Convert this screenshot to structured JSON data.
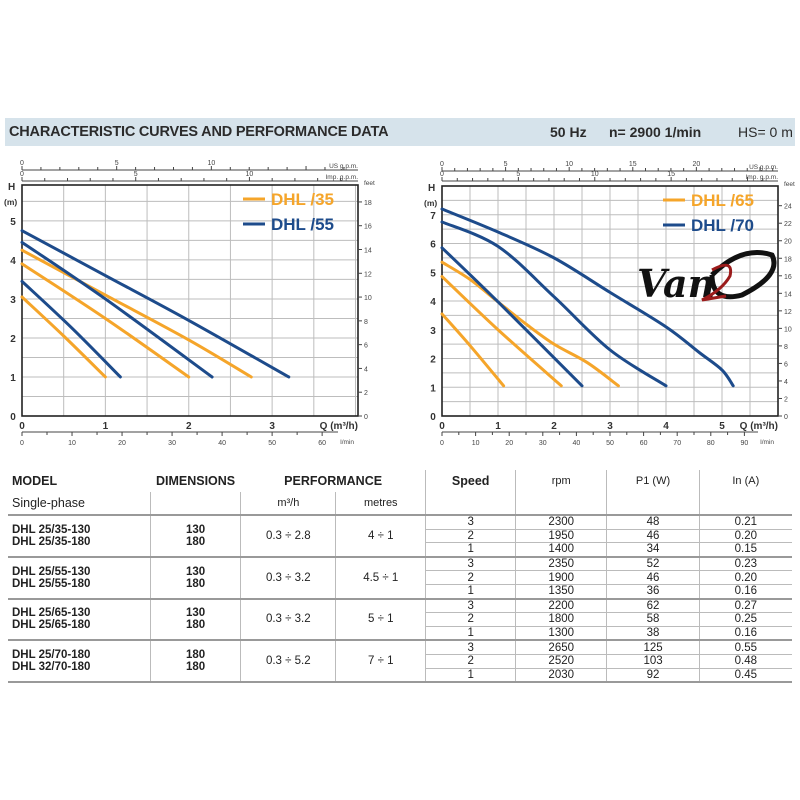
{
  "header": {
    "title": "CHARACTERISTIC CURVES AND PERFORMANCE DATA",
    "frequency": "50 Hz",
    "speed": "n= 2900  1/min",
    "hs": "HS= 0 m"
  },
  "colors": {
    "orange": "#f5a52a",
    "blue": "#1d4b8b",
    "header_bg": "#d6e3eb"
  },
  "logo_text": "Van2O",
  "chart_data": [
    {
      "type": "line",
      "title": "",
      "xlabel": "Q (m³/h)",
      "ylabel_top": "H",
      "ylabel_unit": "(m)",
      "xlim": [
        0,
        4.03
      ],
      "ylim": [
        0,
        5.92
      ],
      "x_ticks": [
        0,
        1,
        2,
        3
      ],
      "y_ticks": [
        0,
        1,
        2,
        3,
        4,
        5
      ],
      "grid": {
        "x_step": 0.5,
        "y_step": 0.5
      },
      "secondary_axes": {
        "us_gpm": {
          "label": "US g.p.m.",
          "ticks": [
            0,
            5,
            10
          ],
          "minor_step": 1
        },
        "imp_gpm": {
          "label": "Imp. g.p.m.",
          "ticks": [
            0,
            5,
            10
          ],
          "minor_step": 1
        },
        "feet": {
          "label": "feet",
          "ticks": [
            0,
            2,
            4,
            6,
            8,
            10,
            12,
            14,
            16,
            18
          ]
        },
        "l_min": {
          "label": "l/min",
          "ticks": [
            0,
            10,
            20,
            30,
            40,
            50,
            60
          ]
        }
      },
      "legend": [
        {
          "label": "DHL /35",
          "color": "#f5a52a"
        },
        {
          "label": "DHL /55",
          "color": "#1d4b8b"
        }
      ],
      "legend_placement": "top-right",
      "series": [
        {
          "name": "DHL /35 speed 1",
          "color": "#f5a52a",
          "points": [
            [
              0,
              3.05
            ],
            [
              0.5,
              2.05
            ],
            [
              1.0,
              1.0
            ]
          ]
        },
        {
          "name": "DHL /35 speed 2",
          "color": "#f5a52a",
          "points": [
            [
              0,
              3.9
            ],
            [
              1.0,
              2.5
            ],
            [
              2.0,
              1.0
            ]
          ]
        },
        {
          "name": "DHL /35 speed 3",
          "color": "#f5a52a",
          "points": [
            [
              0,
              4.25
            ],
            [
              1.0,
              3.1
            ],
            [
              2.0,
              1.95
            ],
            [
              2.75,
              1.0
            ]
          ]
        },
        {
          "name": "DHL /55 speed 1",
          "color": "#1d4b8b",
          "points": [
            [
              0,
              3.45
            ],
            [
              0.6,
              2.25
            ],
            [
              1.18,
              1.0
            ]
          ]
        },
        {
          "name": "DHL /55 speed 2",
          "color": "#1d4b8b",
          "points": [
            [
              0,
              4.45
            ],
            [
              1.0,
              3.0
            ],
            [
              2.28,
              1.0
            ]
          ]
        },
        {
          "name": "DHL /55 speed 3",
          "color": "#1d4b8b",
          "points": [
            [
              0,
              4.75
            ],
            [
              1.0,
              3.6
            ],
            [
              2.0,
              2.45
            ],
            [
              3.2,
              1.0
            ]
          ]
        }
      ]
    },
    {
      "type": "line",
      "title": "",
      "xlabel": "Q (m³/h)",
      "ylabel_top": "H",
      "ylabel_unit": "(m)",
      "xlim": [
        0,
        6.0
      ],
      "ylim": [
        0,
        8.0
      ],
      "x_ticks": [
        0,
        1,
        2,
        3,
        4,
        5
      ],
      "y_ticks": [
        0,
        1,
        2,
        3,
        4,
        5,
        6,
        7
      ],
      "grid": {
        "x_step": 0.5,
        "y_step": 0.5
      },
      "secondary_axes": {
        "us_gpm": {
          "label": "US g.p.m.",
          "ticks": [
            0,
            5,
            10,
            15,
            20
          ],
          "minor_step": 1
        },
        "imp_gpm": {
          "label": "Imp. g.p.m.",
          "ticks": [
            0,
            5,
            10,
            15
          ],
          "minor_step": 1
        },
        "feet": {
          "label": "feet",
          "ticks": [
            0,
            2,
            4,
            6,
            8,
            10,
            12,
            14,
            16,
            18,
            20,
            22,
            24
          ]
        },
        "l_min": {
          "label": "l/min",
          "ticks": [
            0,
            10,
            20,
            30,
            40,
            50,
            60,
            70,
            80,
            90
          ]
        }
      },
      "legend": [
        {
          "label": "DHL /65",
          "color": "#f5a52a"
        },
        {
          "label": "DHL /70",
          "color": "#1d4b8b"
        }
      ],
      "legend_placement": "top-right",
      "series": [
        {
          "name": "DHL /65 speed 1",
          "color": "#f5a52a",
          "points": [
            [
              0,
              3.55
            ],
            [
              0.5,
              2.45
            ],
            [
              1.1,
              1.05
            ]
          ]
        },
        {
          "name": "DHL /65 speed 2",
          "color": "#f5a52a",
          "points": [
            [
              0,
              4.85
            ],
            [
              1.0,
              3.0
            ],
            [
              2.13,
              1.05
            ]
          ]
        },
        {
          "name": "DHL /65 speed 3",
          "color": "#f5a52a",
          "points": [
            [
              0,
              5.35
            ],
            [
              0.5,
              4.75
            ],
            [
              1.0,
              3.97
            ],
            [
              1.5,
              3.2
            ],
            [
              2.0,
              2.5
            ],
            [
              2.6,
              1.85
            ],
            [
              3.15,
              1.05
            ]
          ]
        },
        {
          "name": "DHL /70 speed 1",
          "color": "#1d4b8b",
          "points": [
            [
              0,
              5.85
            ],
            [
              1.0,
              3.97
            ],
            [
              2.5,
              1.05
            ]
          ]
        },
        {
          "name": "DHL /70 speed 2",
          "color": "#1d4b8b",
          "points": [
            [
              0,
              6.75
            ],
            [
              1.0,
              5.9
            ],
            [
              2.0,
              4.15
            ],
            [
              3.0,
              2.3
            ],
            [
              4.0,
              1.05
            ]
          ]
        },
        {
          "name": "DHL /70 speed 3",
          "color": "#1d4b8b",
          "points": [
            [
              0,
              7.2
            ],
            [
              1.0,
              6.4
            ],
            [
              2.0,
              5.5
            ],
            [
              3.0,
              4.3
            ],
            [
              4.0,
              3.1
            ],
            [
              4.6,
              2.2
            ],
            [
              5.0,
              1.6
            ],
            [
              5.2,
              1.05
            ]
          ]
        }
      ]
    }
  ],
  "table": {
    "headers": {
      "model": "MODEL",
      "model_sub": "Single-phase",
      "dimensions": "DIMENSIONS",
      "performance": "PERFORMANCE",
      "flow_unit": "m³/h",
      "head_unit": "metres",
      "speed": "Speed",
      "rpm": "rpm",
      "p1": "P1 (W)",
      "current": "In (A)"
    },
    "groups": [
      {
        "models": [
          "DHL 25/35-130",
          "DHL 25/35-180"
        ],
        "dims": [
          "130",
          "180"
        ],
        "flow": "0.3 ÷ 2.8",
        "head": "4 ÷ 1",
        "speeds": [
          {
            "speed": "3",
            "rpm": "2300",
            "p1": "48",
            "in": "0.21"
          },
          {
            "speed": "2",
            "rpm": "1950",
            "p1": "46",
            "in": "0.20"
          },
          {
            "speed": "1",
            "rpm": "1400",
            "p1": "34",
            "in": "0.15"
          }
        ]
      },
      {
        "models": [
          "DHL 25/55-130",
          "DHL 25/55-180"
        ],
        "dims": [
          "130",
          "180"
        ],
        "flow": "0.3 ÷ 3.2",
        "head": "4.5 ÷ 1",
        "speeds": [
          {
            "speed": "3",
            "rpm": "2350",
            "p1": "52",
            "in": "0.23"
          },
          {
            "speed": "2",
            "rpm": "1900",
            "p1": "46",
            "in": "0.20"
          },
          {
            "speed": "1",
            "rpm": "1350",
            "p1": "36",
            "in": "0.16"
          }
        ]
      },
      {
        "models": [
          "DHL 25/65-130",
          "DHL 25/65-180"
        ],
        "dims": [
          "130",
          "180"
        ],
        "flow": "0.3 ÷ 3.2",
        "head": "5 ÷ 1",
        "speeds": [
          {
            "speed": "3",
            "rpm": "2200",
            "p1": "62",
            "in": "0.27"
          },
          {
            "speed": "2",
            "rpm": "1800",
            "p1": "58",
            "in": "0.25"
          },
          {
            "speed": "1",
            "rpm": "1300",
            "p1": "38",
            "in": "0.16"
          }
        ]
      },
      {
        "models": [
          "DHL 25/70-180",
          "DHL 32/70-180"
        ],
        "dims": [
          "180",
          "180"
        ],
        "flow": "0.3 ÷ 5.2",
        "head": "7 ÷ 1",
        "speeds": [
          {
            "speed": "3",
            "rpm": "2650",
            "p1": "125",
            "in": "0.55"
          },
          {
            "speed": "2",
            "rpm": "2520",
            "p1": "103",
            "in": "0.48"
          },
          {
            "speed": "1",
            "rpm": "2030",
            "p1": "92",
            "in": "0.45"
          }
        ]
      }
    ]
  }
}
